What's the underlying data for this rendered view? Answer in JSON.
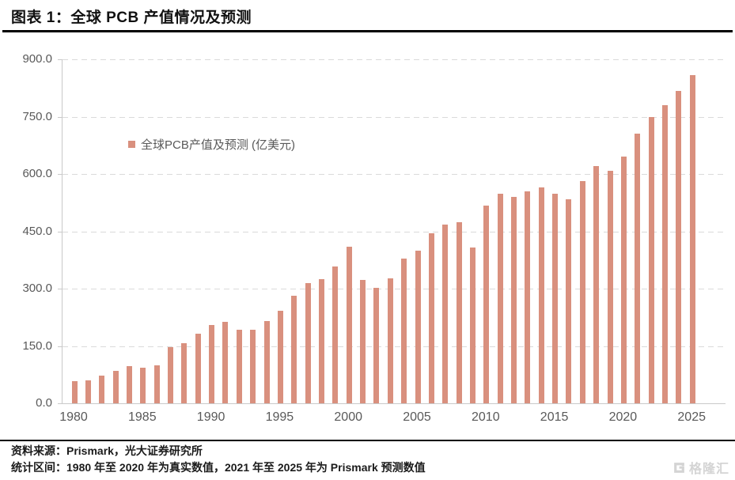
{
  "header": {
    "title": "图表 1：全球 PCB 产值情况及预测"
  },
  "legend": {
    "label": "全球PCB产值及预测 (亿美元)"
  },
  "footer": {
    "source": "资料来源：Prismark，光大证券研究所",
    "note": "统计区间：1980 年至 2020 年为真实数值，2021 年至 2025 年为 Prismark 预测数值"
  },
  "watermark": {
    "brand": "格隆汇",
    "icon": "gelonghui-g-icon"
  },
  "colors": {
    "bar": "#d9907e",
    "grid": "#dadada",
    "axis_line": "#c9c9c9",
    "axis_text": "#595959",
    "title_text": "#111111",
    "watermark": "#d4d4d4"
  },
  "chart_data": {
    "type": "bar",
    "title": "全球 PCB 产值情况及预测",
    "series_name": "全球PCB产值及预测 (亿美元)",
    "xlabel": "",
    "ylabel": "亿美元",
    "ylim": [
      0,
      900
    ],
    "ytick_step": 150,
    "yticks": [
      "0.0",
      "150.0",
      "300.0",
      "450.0",
      "600.0",
      "750.0",
      "900.0"
    ],
    "xtick_labels": [
      "1980",
      "1985",
      "1990",
      "1995",
      "2000",
      "2005",
      "2010",
      "2015",
      "2020",
      "2025"
    ],
    "grid": "horizontal-dashed",
    "legend_position": "inside-upper-left",
    "x": [
      1980,
      1981,
      1982,
      1983,
      1984,
      1985,
      1986,
      1987,
      1988,
      1989,
      1990,
      1991,
      1992,
      1993,
      1994,
      1995,
      1996,
      1997,
      1998,
      1999,
      2000,
      2001,
      2002,
      2003,
      2004,
      2005,
      2006,
      2007,
      2008,
      2009,
      2010,
      2011,
      2012,
      2013,
      2014,
      2015,
      2016,
      2017,
      2018,
      2019,
      2020,
      2021,
      2022,
      2023,
      2024,
      2025
    ],
    "values": [
      57,
      60,
      72,
      85,
      97,
      93,
      100,
      148,
      158,
      183,
      205,
      214,
      193,
      193,
      215,
      243,
      281,
      314,
      325,
      357,
      410,
      323,
      303,
      328,
      379,
      400,
      445,
      468,
      473,
      408,
      517,
      548,
      541,
      555,
      565,
      548,
      533,
      582,
      620,
      609,
      646,
      705,
      750,
      781,
      817,
      859
    ]
  }
}
